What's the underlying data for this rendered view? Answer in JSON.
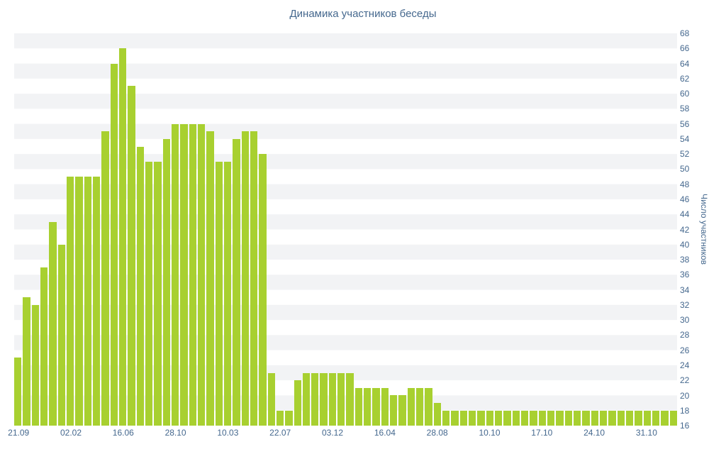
{
  "colors": {
    "bar": "#a8d030",
    "axis_text": "#45688e",
    "stripe": "#f2f3f5"
  },
  "chart_data": {
    "type": "bar",
    "title": "Динамика участников беседы",
    "ylabel": "Число участников",
    "xlabel": "",
    "ylim": [
      16,
      68
    ],
    "ytick_step": 2,
    "grid": "striped-horizontal-bands",
    "legend": "none",
    "yticks": [
      68,
      66,
      64,
      62,
      60,
      58,
      56,
      54,
      52,
      50,
      48,
      46,
      44,
      42,
      40,
      38,
      36,
      34,
      32,
      30,
      28,
      26,
      24,
      22,
      20,
      18,
      16
    ],
    "values": [
      25,
      33,
      32,
      37,
      43,
      40,
      49,
      49,
      49,
      49,
      55,
      64,
      66,
      61,
      53,
      51,
      51,
      54,
      56,
      56,
      56,
      56,
      55,
      51,
      51,
      54,
      55,
      55,
      52,
      23,
      18,
      18,
      22,
      23,
      23,
      23,
      23,
      23,
      23,
      21,
      21,
      21,
      21,
      20,
      20,
      21,
      21,
      21,
      19,
      18,
      18,
      18,
      18,
      18,
      18,
      18,
      18,
      18,
      18,
      18,
      18,
      18,
      18,
      18,
      18,
      18,
      18,
      18,
      18,
      18,
      18,
      18,
      18,
      18,
      18,
      18
    ],
    "x_tick_labels": [
      {
        "index": 0,
        "label": "21.09"
      },
      {
        "index": 6,
        "label": "02.02"
      },
      {
        "index": 12,
        "label": "16.06"
      },
      {
        "index": 18,
        "label": "28.10"
      },
      {
        "index": 24,
        "label": "10.03"
      },
      {
        "index": 30,
        "label": "22.07"
      },
      {
        "index": 36,
        "label": "03.12"
      },
      {
        "index": 42,
        "label": "16.04"
      },
      {
        "index": 48,
        "label": "28.08"
      },
      {
        "index": 54,
        "label": "10.10"
      },
      {
        "index": 60,
        "label": "17.10"
      },
      {
        "index": 66,
        "label": "24.10"
      },
      {
        "index": 72,
        "label": "31.10"
      }
    ]
  }
}
